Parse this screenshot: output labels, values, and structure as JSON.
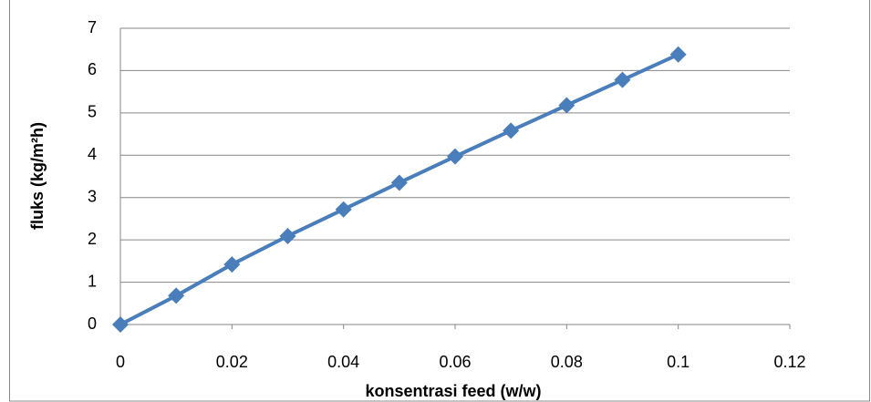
{
  "chart_data": {
    "type": "line",
    "xlabel": "konsentrasi feed (w/w)",
    "ylabel": "fluks (kg/m²h)",
    "x": [
      0,
      0.01,
      0.02,
      0.03,
      0.04,
      0.05,
      0.06,
      0.07,
      0.08,
      0.09,
      0.1
    ],
    "series": [
      {
        "color": "#4a7ebb",
        "values": [
          0,
          0.68,
          1.42,
          2.09,
          2.72,
          3.35,
          3.97,
          4.58,
          5.18,
          5.78,
          6.38
        ]
      }
    ],
    "xlim": [
      0,
      0.12
    ],
    "xticks": [
      0,
      0.02,
      0.04,
      0.06,
      0.08,
      0.1,
      0.12
    ],
    "ylim": [
      0,
      7
    ],
    "yticks": [
      0,
      1,
      2,
      3,
      4,
      5,
      6,
      7
    ],
    "grid": true
  }
}
